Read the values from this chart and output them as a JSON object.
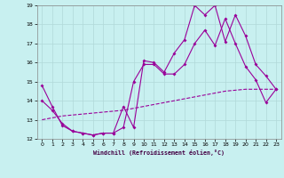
{
  "xlabel": "Windchill (Refroidissement éolien,°C)",
  "xlim": [
    -0.5,
    23.5
  ],
  "ylim": [
    12,
    19
  ],
  "xticks": [
    0,
    1,
    2,
    3,
    4,
    5,
    6,
    7,
    8,
    9,
    10,
    11,
    12,
    13,
    14,
    15,
    16,
    17,
    18,
    19,
    20,
    21,
    22,
    23
  ],
  "yticks": [
    12,
    13,
    14,
    15,
    16,
    17,
    18,
    19
  ],
  "bg_color": "#c8f0f0",
  "line_color": "#990099",
  "grid_color": "#b0d8d8",
  "line1_x": [
    0,
    1,
    2,
    3,
    4,
    5,
    6,
    7,
    8,
    9,
    10,
    11,
    12,
    13,
    14,
    15,
    16,
    17,
    18,
    19,
    20,
    21,
    22,
    23
  ],
  "line1_y": [
    14.8,
    13.7,
    12.7,
    12.4,
    12.3,
    12.2,
    12.3,
    12.3,
    13.7,
    12.6,
    16.1,
    16.0,
    15.5,
    16.5,
    17.2,
    19.0,
    18.5,
    19.0,
    17.1,
    18.5,
    17.4,
    15.9,
    15.3,
    14.6
  ],
  "line2_x": [
    0,
    1,
    2,
    3,
    4,
    5,
    6,
    7,
    8,
    9,
    10,
    11,
    12,
    13,
    14,
    15,
    16,
    17,
    18,
    19,
    20,
    21,
    22,
    23
  ],
  "line2_y": [
    14.0,
    13.5,
    12.8,
    12.4,
    12.3,
    12.2,
    12.3,
    12.3,
    12.6,
    15.0,
    15.9,
    15.9,
    15.4,
    15.4,
    15.9,
    17.0,
    17.7,
    16.9,
    18.3,
    17.0,
    15.8,
    15.1,
    13.9,
    14.6
  ],
  "line3_x": [
    0,
    1,
    2,
    3,
    4,
    5,
    6,
    7,
    8,
    9,
    10,
    11,
    12,
    13,
    14,
    15,
    16,
    17,
    18,
    19,
    20,
    21,
    22,
    23
  ],
  "line3_y": [
    13.0,
    13.1,
    13.2,
    13.25,
    13.3,
    13.35,
    13.4,
    13.45,
    13.5,
    13.6,
    13.7,
    13.8,
    13.9,
    14.0,
    14.1,
    14.2,
    14.3,
    14.4,
    14.5,
    14.55,
    14.6,
    14.6,
    14.6,
    14.6
  ]
}
